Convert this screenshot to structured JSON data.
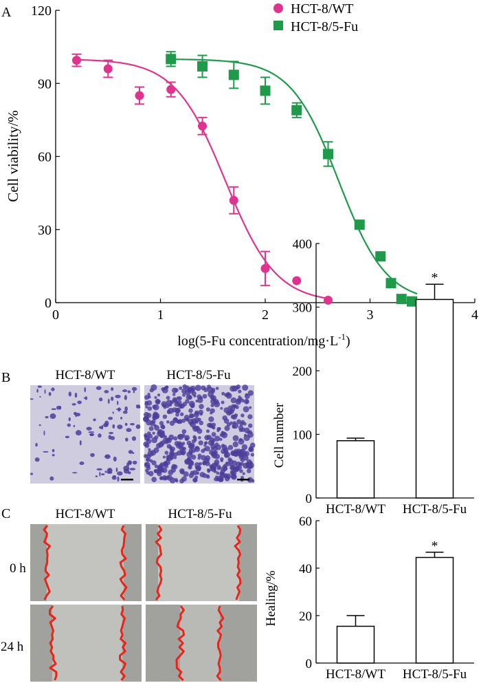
{
  "panels": {
    "A": "A",
    "B": "B",
    "C": "C"
  },
  "chart_data": [
    {
      "id": "panelA",
      "type": "scatter",
      "xlabel_main": "log(5-Fu concentration/mg·L",
      "xlabel_sup": "-1",
      "xlabel_end": ")",
      "ylabel": "Cell viability/%",
      "xlim": [
        0,
        4
      ],
      "ylim": [
        0,
        120
      ],
      "xticks": [
        "0",
        "1",
        "2",
        "3",
        "4"
      ],
      "yticks": [
        "0",
        "30",
        "60",
        "90",
        "120"
      ],
      "xtick_values": [
        0,
        1,
        2,
        3,
        4
      ],
      "ytick_values": [
        0,
        30,
        60,
        90,
        120
      ],
      "legend_position": "top-right",
      "series": [
        {
          "name": "HCT-8/WT",
          "marker": "circle",
          "color": "#e0338f",
          "x": [
            0.2,
            0.5,
            0.8,
            1.1,
            1.4,
            1.7,
            2.0,
            2.3,
            2.6
          ],
          "y": [
            99.5,
            96,
            85,
            87.5,
            72.5,
            42,
            14,
            9,
            1
          ],
          "err": [
            2.5,
            3.5,
            3.5,
            3,
            3.5,
            5.5,
            7,
            0,
            0
          ],
          "fit": {
            "top": 100,
            "bottom": 0,
            "log_ic50": 1.62,
            "hill": 1.8,
            "x_start": 0.2,
            "x_end": 2.6
          }
        },
        {
          "name": "HCT-8/5-Fu",
          "marker": "square",
          "color": "#1f9a4a",
          "x": [
            1.1,
            1.4,
            1.7,
            2.0,
            2.3,
            2.6,
            2.9,
            3.1,
            3.2,
            3.3,
            3.4
          ],
          "y": [
            100,
            97,
            93.5,
            87,
            79,
            61,
            32,
            19,
            8,
            1.5,
            0.5
          ],
          "err": [
            3,
            4.5,
            5.5,
            5.5,
            3,
            5,
            0,
            0,
            0,
            0,
            0
          ],
          "fit": {
            "top": 100,
            "bottom": 0,
            "log_ic50": 2.7,
            "hill": 1.9,
            "x_start": 1.1,
            "x_end": 3.45
          }
        }
      ]
    },
    {
      "id": "panelB",
      "type": "bar",
      "ylabel": "Cell number",
      "categories": [
        "HCT-8/WT",
        "HCT-8/5-Fu"
      ],
      "values": [
        90,
        312
      ],
      "errors": [
        4,
        24
      ],
      "significance": [
        "",
        "*"
      ],
      "ylim": [
        0,
        400
      ],
      "yticks": [
        "0",
        "100",
        "200",
        "300",
        "400"
      ],
      "ytick_values": [
        0,
        100,
        200,
        300,
        400
      ]
    },
    {
      "id": "panelC",
      "type": "bar",
      "ylabel": "Healing/%",
      "categories": [
        "HCT-8/WT",
        "HCT-8/5-Fu"
      ],
      "values": [
        15.5,
        44.5
      ],
      "errors": [
        4.5,
        2.2
      ],
      "significance": [
        "",
        "*"
      ],
      "ylim": [
        0,
        60
      ],
      "yticks": [
        "0",
        "20",
        "40",
        "60"
      ],
      "ytick_values": [
        0,
        20,
        40,
        60
      ]
    }
  ],
  "micrographs": {
    "transwell_labels": [
      "HCT-8/WT",
      "HCT-8/5-Fu"
    ],
    "wound_column_labels": [
      "HCT-8/WT",
      "HCT-8/5-Fu"
    ],
    "wound_row_labels": [
      "0 h",
      "24 h"
    ],
    "colors": {
      "membrane": "#cfcce0",
      "stain": "#4b3d9a",
      "wound_bg": "#a7a7a3",
      "wound_edge": "#e8251a"
    }
  }
}
